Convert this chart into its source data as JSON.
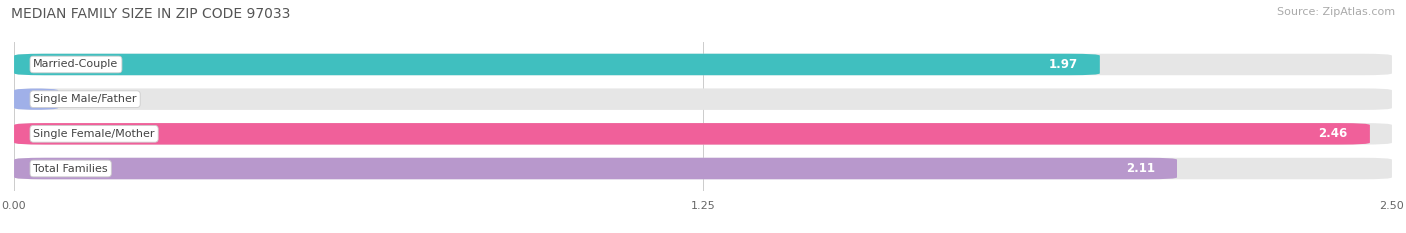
{
  "title": "MEDIAN FAMILY SIZE IN ZIP CODE 97033",
  "source": "Source: ZipAtlas.com",
  "categories": [
    "Married-Couple",
    "Single Male/Father",
    "Single Female/Mother",
    "Total Families"
  ],
  "values": [
    1.97,
    0.0,
    2.46,
    2.11
  ],
  "bar_colors": [
    "#40bfbf",
    "#a0b0e8",
    "#f0609a",
    "#b898cc"
  ],
  "xlim": [
    0.0,
    2.5
  ],
  "xticks": [
    0.0,
    1.25,
    2.5
  ],
  "xtick_labels": [
    "0.00",
    "1.25",
    "2.50"
  ],
  "bar_height": 0.62,
  "bar_gap": 0.18,
  "value_fontsize": 8.5,
  "label_fontsize": 8,
  "title_fontsize": 10,
  "source_fontsize": 8,
  "background_color": "#ffffff",
  "bar_bg_color": "#e6e6e6",
  "small_bar_value": 0.08
}
